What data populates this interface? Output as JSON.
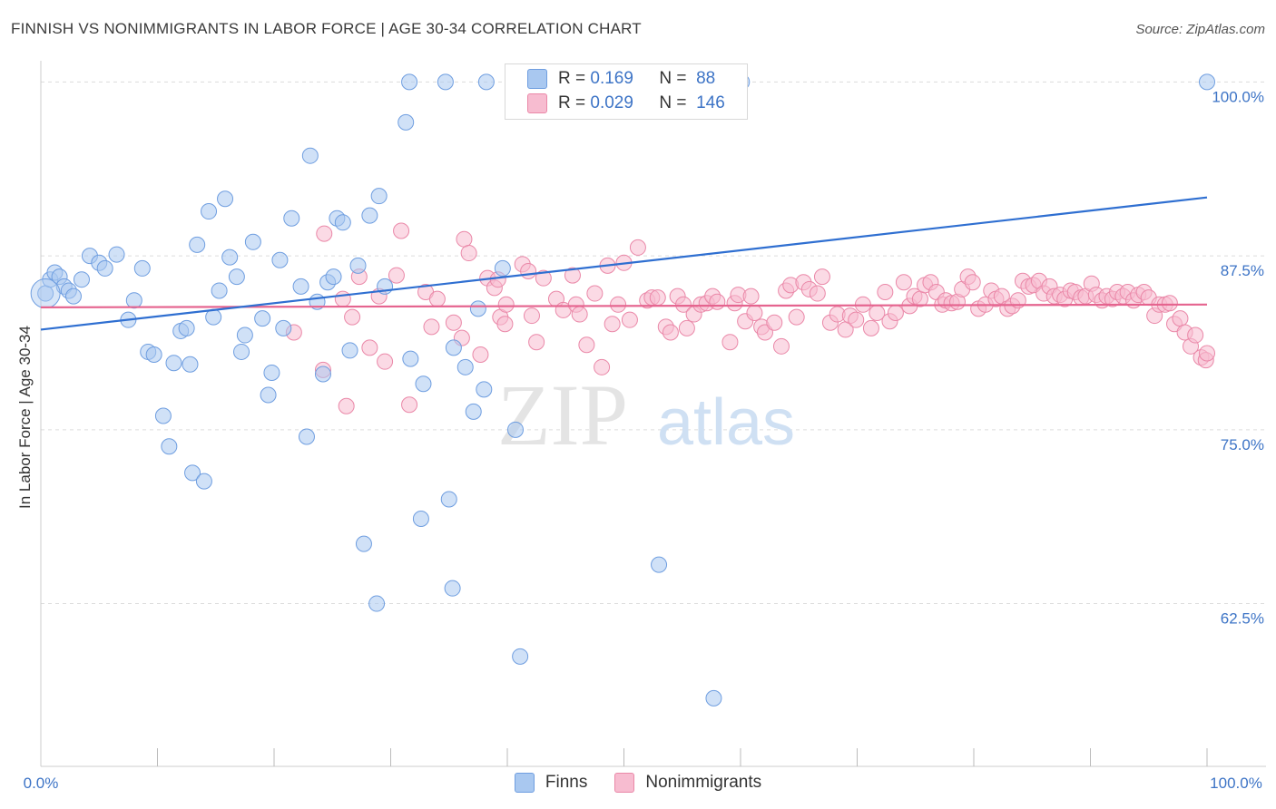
{
  "title": "FINNISH VS NONIMMIGRANTS IN LABOR FORCE | AGE 30-34 CORRELATION CHART",
  "source": "Source: ZipAtlas.com",
  "watermark": {
    "zip": "ZIP",
    "atlas": "atlas"
  },
  "legend": {
    "finns": {
      "r_label": "R =",
      "r_value": "0.169",
      "n_label": "N =",
      "n_value": "88"
    },
    "nonimmigrants": {
      "r_label": "R =",
      "r_value": "0.029",
      "n_label": "N =",
      "n_value": "146"
    }
  },
  "bottom_legend": {
    "finns": "Finns",
    "nonimmigrants": "Nonimmigrants"
  },
  "colors": {
    "finns_fill": "#a9c8f0",
    "finns_stroke": "#6f9ee0",
    "finns_line": "#2f6fd1",
    "non_fill": "#f7bcd0",
    "non_stroke": "#ea88a8",
    "non_line": "#e5648f",
    "tick_label": "#3d74c6",
    "grid": "#dcdcdc"
  },
  "chart_data": {
    "type": "scatter",
    "title": "FINNISH VS NONIMMIGRANTS IN LABOR FORCE | AGE 30-34 CORRELATION CHART",
    "xlabel": "",
    "ylabel": "In Labor Force | Age 30-34",
    "xlim": [
      0,
      100
    ],
    "ylim": [
      50.8,
      101.2
    ],
    "x_tick_labels": {
      "left": "0.0%",
      "right": "100.0%"
    },
    "y_ticks": [
      {
        "value": 100.0,
        "label": "100.0%"
      },
      {
        "value": 87.5,
        "label": "87.5%"
      },
      {
        "value": 75.0,
        "label": "75.0%"
      },
      {
        "value": 62.5,
        "label": "62.5%"
      }
    ],
    "grid": true,
    "legend_position": "top-center",
    "series": [
      {
        "name": "Finns",
        "trend": {
          "x": [
            0,
            100
          ],
          "y": [
            82.2,
            91.7
          ]
        },
        "points": [
          [
            0.4,
            84.8
          ],
          [
            0.8,
            85.8
          ],
          [
            1.2,
            86.3
          ],
          [
            1.6,
            86.0
          ],
          [
            2.0,
            85.3
          ],
          [
            2.4,
            85.0
          ],
          [
            2.8,
            84.6
          ],
          [
            3.5,
            85.8
          ],
          [
            4.2,
            87.5
          ],
          [
            5.0,
            87.0
          ],
          [
            5.5,
            86.6
          ],
          [
            6.5,
            87.6
          ],
          [
            8.0,
            84.3
          ],
          [
            8.7,
            86.6
          ],
          [
            9.2,
            80.6
          ],
          [
            9.7,
            80.4
          ],
          [
            7.5,
            82.9
          ],
          [
            10.5,
            76.0
          ],
          [
            11.0,
            73.8
          ],
          [
            11.4,
            79.8
          ],
          [
            12.0,
            82.1
          ],
          [
            12.5,
            82.3
          ],
          [
            13.0,
            71.9
          ],
          [
            12.8,
            79.7
          ],
          [
            13.4,
            88.3
          ],
          [
            14.0,
            71.3
          ],
          [
            14.4,
            90.7
          ],
          [
            14.8,
            83.1
          ],
          [
            15.3,
            85.0
          ],
          [
            15.8,
            91.6
          ],
          [
            16.2,
            87.4
          ],
          [
            16.8,
            86.0
          ],
          [
            17.2,
            80.6
          ],
          [
            17.5,
            81.8
          ],
          [
            18.2,
            88.5
          ],
          [
            19.0,
            83.0
          ],
          [
            19.5,
            77.5
          ],
          [
            19.8,
            79.1
          ],
          [
            20.5,
            87.2
          ],
          [
            20.8,
            82.3
          ],
          [
            21.5,
            90.2
          ],
          [
            22.3,
            85.3
          ],
          [
            22.8,
            74.5
          ],
          [
            23.1,
            94.7
          ],
          [
            23.7,
            84.2
          ],
          [
            24.2,
            79.0
          ],
          [
            24.6,
            85.6
          ],
          [
            25.1,
            86.0
          ],
          [
            25.4,
            90.2
          ],
          [
            25.9,
            89.9
          ],
          [
            26.5,
            80.7
          ],
          [
            27.2,
            86.8
          ],
          [
            27.7,
            66.8
          ],
          [
            28.2,
            90.4
          ],
          [
            28.8,
            62.5
          ],
          [
            29.0,
            91.8
          ],
          [
            29.5,
            85.3
          ],
          [
            31.3,
            97.1
          ],
          [
            31.7,
            80.1
          ],
          [
            32.6,
            68.6
          ],
          [
            32.8,
            78.3
          ],
          [
            31.6,
            100.0
          ],
          [
            34.7,
            100.0
          ],
          [
            35.0,
            70.0
          ],
          [
            35.3,
            63.6
          ],
          [
            35.4,
            80.9
          ],
          [
            36.4,
            79.5
          ],
          [
            37.1,
            76.3
          ],
          [
            37.5,
            83.7
          ],
          [
            38.2,
            100.0
          ],
          [
            38.0,
            77.9
          ],
          [
            39.6,
            86.6
          ],
          [
            41.1,
            58.7
          ],
          [
            40.7,
            75.0
          ],
          [
            44.4,
            100.0
          ],
          [
            46.3,
            100.0
          ],
          [
            50.5,
            100.0
          ],
          [
            53.0,
            65.3
          ],
          [
            57.7,
            55.7
          ],
          [
            60.1,
            100.0
          ],
          [
            100.0,
            100.0
          ]
        ]
      },
      {
        "name": "Nonimmigrants",
        "trend": {
          "x": [
            0,
            100
          ],
          "y": [
            83.8,
            84.0
          ]
        },
        "points": [
          [
            21.7,
            82.0
          ],
          [
            24.3,
            89.1
          ],
          [
            24.2,
            79.3
          ],
          [
            25.9,
            84.4
          ],
          [
            26.2,
            76.7
          ],
          [
            26.7,
            83.1
          ],
          [
            27.3,
            86.0
          ],
          [
            28.2,
            80.9
          ],
          [
            29.0,
            84.6
          ],
          [
            29.5,
            79.9
          ],
          [
            30.5,
            86.1
          ],
          [
            30.9,
            89.3
          ],
          [
            31.6,
            76.8
          ],
          [
            33.5,
            82.4
          ],
          [
            33.0,
            84.9
          ],
          [
            34.0,
            84.4
          ],
          [
            35.4,
            82.7
          ],
          [
            36.1,
            81.6
          ],
          [
            36.3,
            88.7
          ],
          [
            36.7,
            87.7
          ],
          [
            37.7,
            80.4
          ],
          [
            38.3,
            85.9
          ],
          [
            38.9,
            85.2
          ],
          [
            39.2,
            85.8
          ],
          [
            39.4,
            83.1
          ],
          [
            39.9,
            84.0
          ],
          [
            39.8,
            82.6
          ],
          [
            41.3,
            86.9
          ],
          [
            41.8,
            86.4
          ],
          [
            42.1,
            83.2
          ],
          [
            42.5,
            81.3
          ],
          [
            43.1,
            85.9
          ],
          [
            44.2,
            84.4
          ],
          [
            44.8,
            83.6
          ],
          [
            45.6,
            86.1
          ],
          [
            45.9,
            84.0
          ],
          [
            46.2,
            83.3
          ],
          [
            46.8,
            81.1
          ],
          [
            47.5,
            84.8
          ],
          [
            48.1,
            79.5
          ],
          [
            48.6,
            86.8
          ],
          [
            49.0,
            82.6
          ],
          [
            49.5,
            84.0
          ],
          [
            50.0,
            87.0
          ],
          [
            50.5,
            82.9
          ],
          [
            51.2,
            88.1
          ],
          [
            52.0,
            84.3
          ],
          [
            52.4,
            84.5
          ],
          [
            52.9,
            84.5
          ],
          [
            53.6,
            82.4
          ],
          [
            54.0,
            82.0
          ],
          [
            54.6,
            84.6
          ],
          [
            55.1,
            84.0
          ],
          [
            55.4,
            82.3
          ],
          [
            56.0,
            83.3
          ],
          [
            56.6,
            84.0
          ],
          [
            57.1,
            84.1
          ],
          [
            57.6,
            84.6
          ],
          [
            58.0,
            84.2
          ],
          [
            59.1,
            81.3
          ],
          [
            59.5,
            84.1
          ],
          [
            59.8,
            84.7
          ],
          [
            60.4,
            82.8
          ],
          [
            60.9,
            84.6
          ],
          [
            61.2,
            83.4
          ],
          [
            61.8,
            82.4
          ],
          [
            62.1,
            82.0
          ],
          [
            62.9,
            82.7
          ],
          [
            63.5,
            81.0
          ],
          [
            63.9,
            85.0
          ],
          [
            64.3,
            85.4
          ],
          [
            64.8,
            83.1
          ],
          [
            65.4,
            85.6
          ],
          [
            65.9,
            85.1
          ],
          [
            66.6,
            84.8
          ],
          [
            67.0,
            86.0
          ],
          [
            67.7,
            82.7
          ],
          [
            68.3,
            83.3
          ],
          [
            69.0,
            82.2
          ],
          [
            69.4,
            83.2
          ],
          [
            69.9,
            82.9
          ],
          [
            70.5,
            84.0
          ],
          [
            71.2,
            82.3
          ],
          [
            71.7,
            83.4
          ],
          [
            72.4,
            84.9
          ],
          [
            72.8,
            82.8
          ],
          [
            73.3,
            83.4
          ],
          [
            74.0,
            85.6
          ],
          [
            74.5,
            83.9
          ],
          [
            74.9,
            84.6
          ],
          [
            75.4,
            84.4
          ],
          [
            75.8,
            85.4
          ],
          [
            76.3,
            85.6
          ],
          [
            76.8,
            84.9
          ],
          [
            77.3,
            84.0
          ],
          [
            77.6,
            84.3
          ],
          [
            78.1,
            84.1
          ],
          [
            78.6,
            84.2
          ],
          [
            79.0,
            85.1
          ],
          [
            79.5,
            86.0
          ],
          [
            79.9,
            85.6
          ],
          [
            80.4,
            83.7
          ],
          [
            81.0,
            84.0
          ],
          [
            81.5,
            85.0
          ],
          [
            81.9,
            84.4
          ],
          [
            82.4,
            84.6
          ],
          [
            82.9,
            83.7
          ],
          [
            83.3,
            83.9
          ],
          [
            83.8,
            84.3
          ],
          [
            84.2,
            85.7
          ],
          [
            84.7,
            85.3
          ],
          [
            85.1,
            85.4
          ],
          [
            85.6,
            85.7
          ],
          [
            86.0,
            84.8
          ],
          [
            86.5,
            85.3
          ],
          [
            86.9,
            84.6
          ],
          [
            87.4,
            84.7
          ],
          [
            87.8,
            84.4
          ],
          [
            88.3,
            85.0
          ],
          [
            88.7,
            84.9
          ],
          [
            89.2,
            84.5
          ],
          [
            89.6,
            84.6
          ],
          [
            90.1,
            85.5
          ],
          [
            90.5,
            84.7
          ],
          [
            91.0,
            84.3
          ],
          [
            91.4,
            84.6
          ],
          [
            91.9,
            84.4
          ],
          [
            92.3,
            84.9
          ],
          [
            92.8,
            84.6
          ],
          [
            93.2,
            84.9
          ],
          [
            93.7,
            84.3
          ],
          [
            94.1,
            84.7
          ],
          [
            94.6,
            84.9
          ],
          [
            95.0,
            84.5
          ],
          [
            95.5,
            83.2
          ],
          [
            95.9,
            84.0
          ],
          [
            96.4,
            84.0
          ],
          [
            96.8,
            84.1
          ],
          [
            97.2,
            82.6
          ],
          [
            97.7,
            83.0
          ],
          [
            98.1,
            82.0
          ],
          [
            98.6,
            81.0
          ],
          [
            99.0,
            81.8
          ],
          [
            99.5,
            80.2
          ],
          [
            99.9,
            80.0
          ],
          [
            100.0,
            80.5
          ]
        ]
      }
    ]
  }
}
